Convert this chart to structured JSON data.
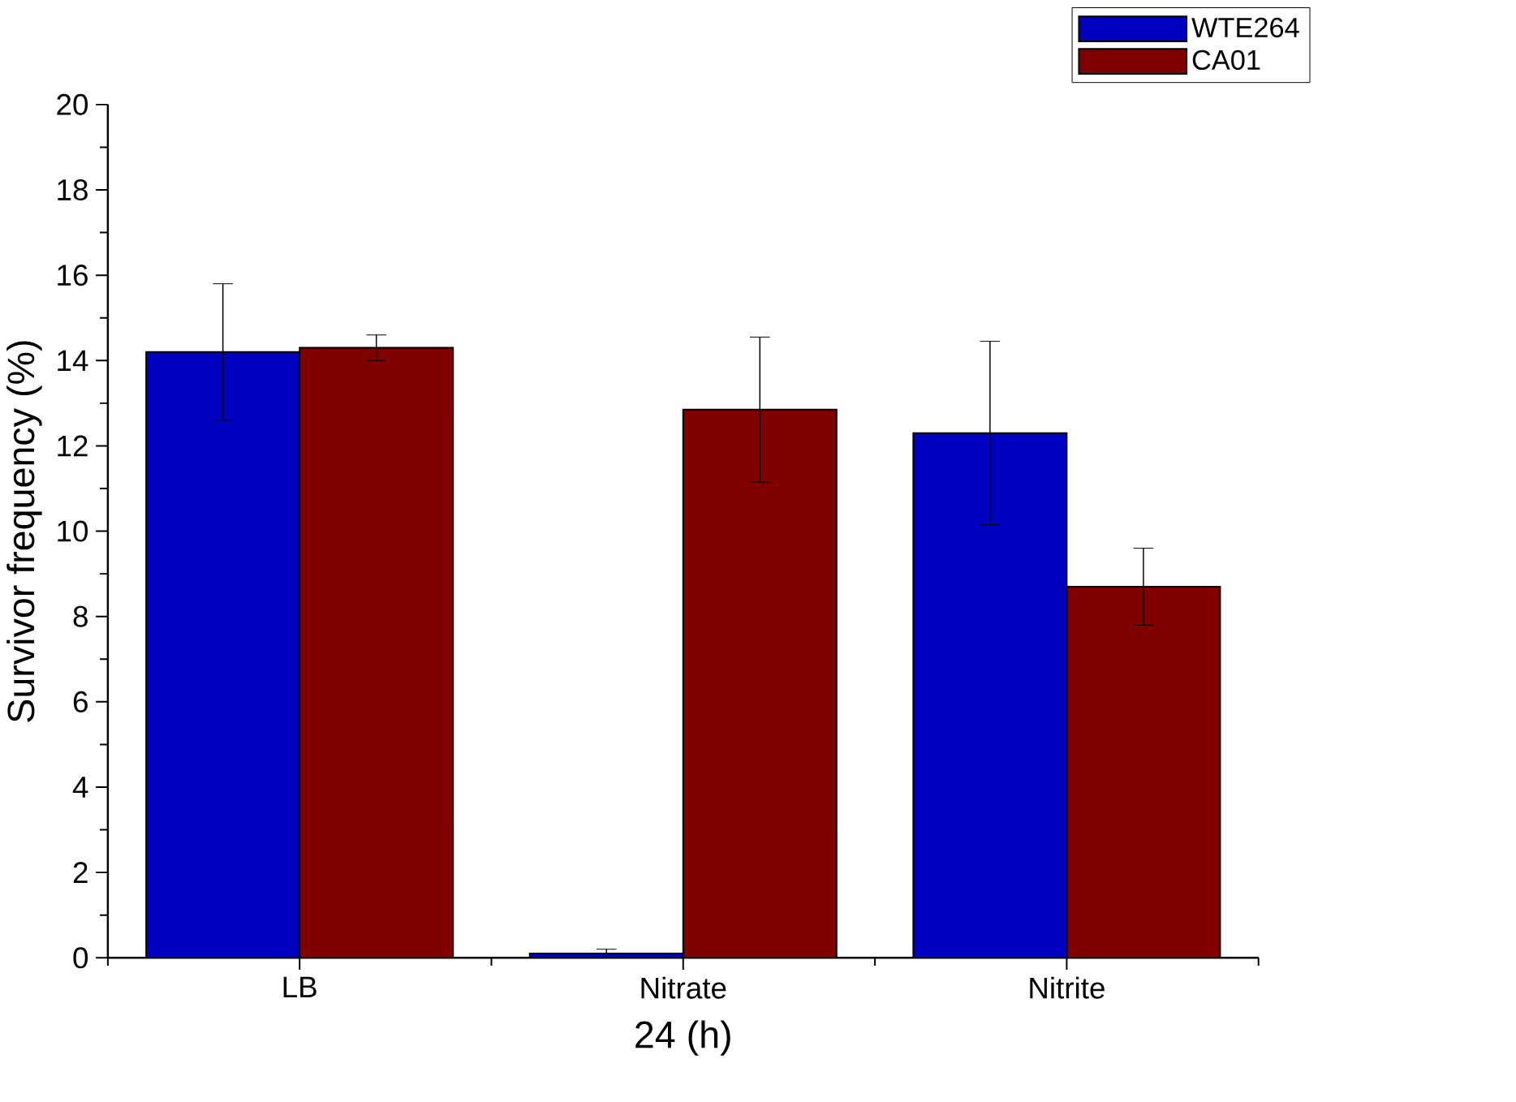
{
  "chart_data": {
    "type": "bar",
    "xlabel": "24 (h)",
    "ylabel": "Survivor frequency (%)",
    "categories": [
      "LB",
      "Nitrate",
      "Nitrite"
    ],
    "series": [
      {
        "name": "WTE264",
        "color": "#0000c0",
        "values": [
          14.2,
          0.1,
          12.3
        ],
        "errors": [
          1.6,
          0.1,
          2.15
        ]
      },
      {
        "name": "CA01",
        "color": "#800000",
        "values": [
          14.3,
          12.85,
          8.7
        ],
        "errors": [
          0.3,
          1.7,
          0.9
        ]
      }
    ],
    "ylim": [
      0,
      20
    ],
    "yticks": [
      0,
      2,
      4,
      6,
      8,
      10,
      12,
      14,
      16,
      18,
      20
    ],
    "grid": false,
    "legend": "top right"
  }
}
